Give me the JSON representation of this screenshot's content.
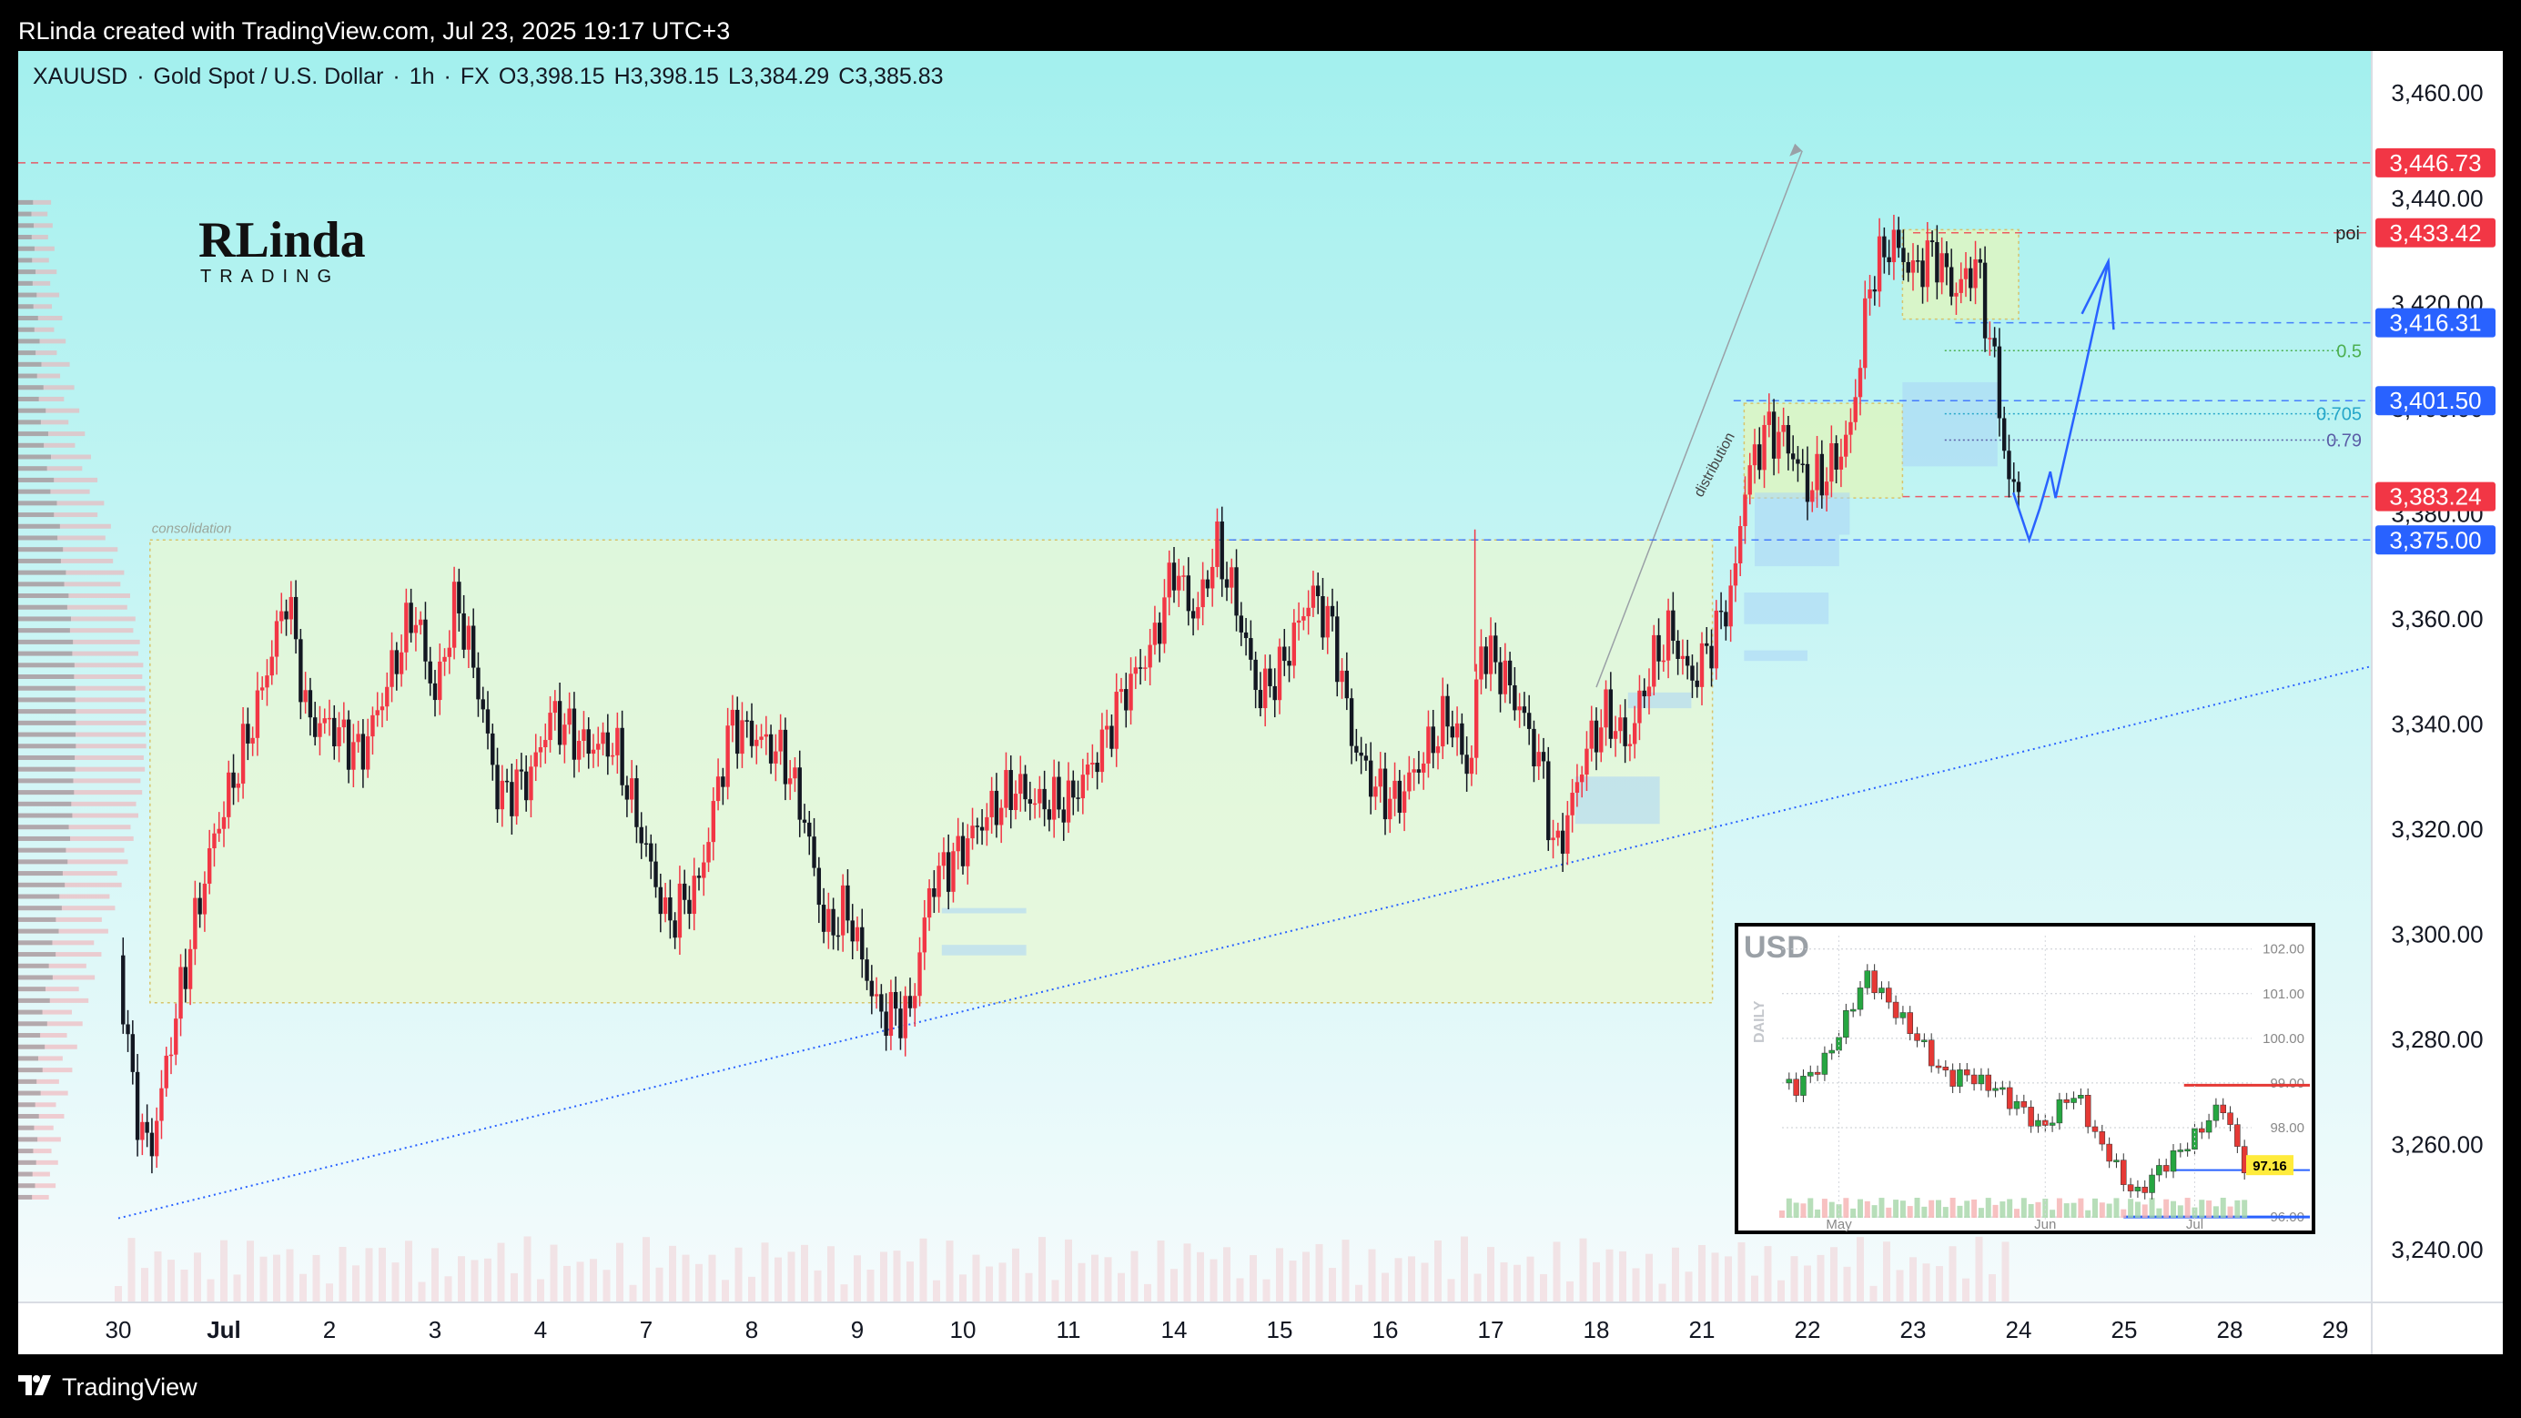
{
  "header": {
    "author_line": "RLinda created with TradingView.com, Jul 23, 2025 19:17 UTC+3"
  },
  "footer": {
    "brand": "TradingView",
    "logo_icon": "tradingview-logo-icon"
  },
  "watermark": {
    "logo_text_top": "RLinda",
    "logo_text_bottom": "TRADING"
  },
  "colors": {
    "up_candle": "#f23645",
    "down_candle": "#131722",
    "bg_top": "#a3f0ee",
    "bg_bottom": "#f5fbfc",
    "red_level": "#f23645",
    "blue_level": "#2962ff"
  },
  "chart_data": {
    "type": "candlestick",
    "symbol": "XAUUSD",
    "name": "Gold Spot / U.S. Dollar",
    "timeframe": "1h",
    "source": "FX",
    "ohlc_labels": {
      "O": "O3,398.15",
      "H": "H3,398.15",
      "L": "L3,384.29",
      "C": "C3,385.83"
    },
    "ylim": [
      3230,
      3468
    ],
    "y_ticks": [
      "3,460.00",
      "3,440.00",
      "3,420.00",
      "3,400.00",
      "3,380.00",
      "3,360.00",
      "3,340.00",
      "3,320.00",
      "3,300.00",
      "3,280.00",
      "3,260.00",
      "3,240.00"
    ],
    "y_tick_values": [
      3460,
      3440,
      3420,
      3400,
      3380,
      3360,
      3340,
      3320,
      3300,
      3280,
      3260,
      3240
    ],
    "x_ticks": [
      "30",
      "Jul",
      "2",
      "3",
      "4",
      "7",
      "8",
      "9",
      "10",
      "11",
      "14",
      "15",
      "16",
      "17",
      "18",
      "21",
      "22",
      "23",
      "24",
      "25",
      "28",
      "29"
    ],
    "x_tick_index": [
      0,
      1,
      2,
      3,
      4,
      5,
      6,
      7,
      8,
      9,
      10,
      11,
      12,
      13,
      14,
      15,
      16,
      17,
      18,
      19,
      20,
      21
    ],
    "price_path": [
      [
        0,
        3296
      ],
      [
        0.15,
        3268
      ],
      [
        0.3,
        3258
      ],
      [
        0.5,
        3280
      ],
      [
        0.7,
        3300
      ],
      [
        0.9,
        3318
      ],
      [
        1.1,
        3330
      ],
      [
        1.3,
        3342
      ],
      [
        1.6,
        3365
      ],
      [
        1.8,
        3340
      ],
      [
        2.0,
        3340
      ],
      [
        2.3,
        3334
      ],
      [
        2.5,
        3345
      ],
      [
        2.8,
        3362
      ],
      [
        3.0,
        3345
      ],
      [
        3.2,
        3364
      ],
      [
        3.4,
        3348
      ],
      [
        3.6,
        3326
      ],
      [
        3.9,
        3330
      ],
      [
        4.1,
        3342
      ],
      [
        4.4,
        3336
      ],
      [
        4.7,
        3336
      ],
      [
        5.0,
        3316
      ],
      [
        5.2,
        3302
      ],
      [
        5.5,
        3310
      ],
      [
        5.8,
        3340
      ],
      [
        6.0,
        3338
      ],
      [
        6.3,
        3334
      ],
      [
        6.5,
        3322
      ],
      [
        6.7,
        3300
      ],
      [
        6.9,
        3305
      ],
      [
        7.2,
        3285
      ],
      [
        7.5,
        3285
      ],
      [
        7.7,
        3310
      ],
      [
        7.9,
        3314
      ],
      [
        8.2,
        3322
      ],
      [
        8.5,
        3328
      ],
      [
        8.7,
        3325
      ],
      [
        9.0,
        3325
      ],
      [
        9.3,
        3335
      ],
      [
        9.5,
        3345
      ],
      [
        9.8,
        3355
      ],
      [
        10.0,
        3370
      ],
      [
        10.2,
        3360
      ],
      [
        10.4,
        3374
      ],
      [
        10.6,
        3362
      ],
      [
        10.8,
        3345
      ],
      [
        11.0,
        3350
      ],
      [
        11.3,
        3365
      ],
      [
        11.5,
        3358
      ],
      [
        11.7,
        3336
      ],
      [
        11.9,
        3328
      ],
      [
        12.1,
        3325
      ],
      [
        12.4,
        3335
      ],
      [
        12.6,
        3342
      ],
      [
        12.8,
        3330
      ],
      [
        12.9,
        3355
      ],
      [
        13.1,
        3350
      ],
      [
        13.3,
        3342
      ],
      [
        13.5,
        3330
      ],
      [
        13.6,
        3315
      ],
      [
        13.7,
        3320
      ],
      [
        13.9,
        3335
      ],
      [
        14.1,
        3342
      ],
      [
        14.3,
        3336
      ],
      [
        14.5,
        3350
      ],
      [
        14.7,
        3358
      ],
      [
        14.9,
        3348
      ],
      [
        15.1,
        3356
      ],
      [
        15.3,
        3366
      ],
      [
        15.4,
        3385
      ],
      [
        15.6,
        3396
      ],
      [
        15.8,
        3394
      ],
      [
        16.0,
        3385
      ],
      [
        16.2,
        3388
      ],
      [
        16.4,
        3395
      ],
      [
        16.6,
        3425
      ],
      [
        16.8,
        3432
      ],
      [
        17.0,
        3426
      ],
      [
        17.2,
        3430
      ],
      [
        17.4,
        3422
      ],
      [
        17.6,
        3428
      ],
      [
        17.7,
        3416
      ],
      [
        17.8,
        3405
      ],
      [
        17.9,
        3385
      ],
      [
        18.0,
        3385.8
      ]
    ],
    "inset": {
      "title": "USD",
      "timeframe_label": "DAILY",
      "y_labels": [
        "102.00",
        "101.00",
        "100.00",
        "99.00",
        "98.00",
        "97.16",
        "96.00"
      ],
      "y_values": [
        102,
        101,
        100,
        99,
        98,
        97.16,
        96
      ],
      "x_labels": [
        "May",
        "Jun",
        "Jul"
      ],
      "last_price": "97.16",
      "ylim": [
        95.9,
        102.3
      ],
      "path": [
        [
          0,
          99
        ],
        [
          2,
          98.9
        ],
        [
          4,
          99.2
        ],
        [
          6,
          99.5
        ],
        [
          8,
          100.1
        ],
        [
          10,
          100.8
        ],
        [
          12,
          101.4
        ],
        [
          14,
          101
        ],
        [
          16,
          100.6
        ],
        [
          18,
          100.2
        ],
        [
          20,
          99.8
        ],
        [
          22,
          99.3
        ],
        [
          24,
          99.1
        ],
        [
          26,
          99.2
        ],
        [
          28,
          99
        ],
        [
          30,
          98.9
        ],
        [
          32,
          98.6
        ],
        [
          34,
          98.4
        ],
        [
          36,
          98.0
        ],
        [
          38,
          98.2
        ],
        [
          40,
          98.7
        ],
        [
          42,
          98.6
        ],
        [
          44,
          97.8
        ],
        [
          46,
          97.4
        ],
        [
          48,
          96.8
        ],
        [
          50,
          96.5
        ],
        [
          52,
          96.9
        ],
        [
          54,
          97.2
        ],
        [
          56,
          97.5
        ],
        [
          58,
          97.8
        ],
        [
          60,
          98.2
        ],
        [
          62,
          98.5
        ],
        [
          63,
          98.0
        ],
        [
          64,
          97.5
        ],
        [
          65,
          97.16
        ]
      ]
    }
  },
  "annotations": {
    "consolidation": "consolidation",
    "distribution": "distribution",
    "poi": "poi",
    "fib_05": "0.5",
    "fib_0705": "0.705",
    "fib_079": "0.79"
  },
  "levels": [
    {
      "price": 3446.73,
      "label": "3,446.73",
      "style": "red-dashed"
    },
    {
      "price": 3433.42,
      "label": "3,433.42",
      "style": "red-dashed"
    },
    {
      "price": 3416.31,
      "label": "3,416.31",
      "style": "blue-dashed"
    },
    {
      "price": 3401.5,
      "label": "3,401.50",
      "style": "blue-dashed"
    },
    {
      "price": 3383.24,
      "label": "3,383.24",
      "style": "red-dashed"
    },
    {
      "price": 3375.0,
      "label": "3,375.00",
      "style": "blue-dashed"
    }
  ]
}
